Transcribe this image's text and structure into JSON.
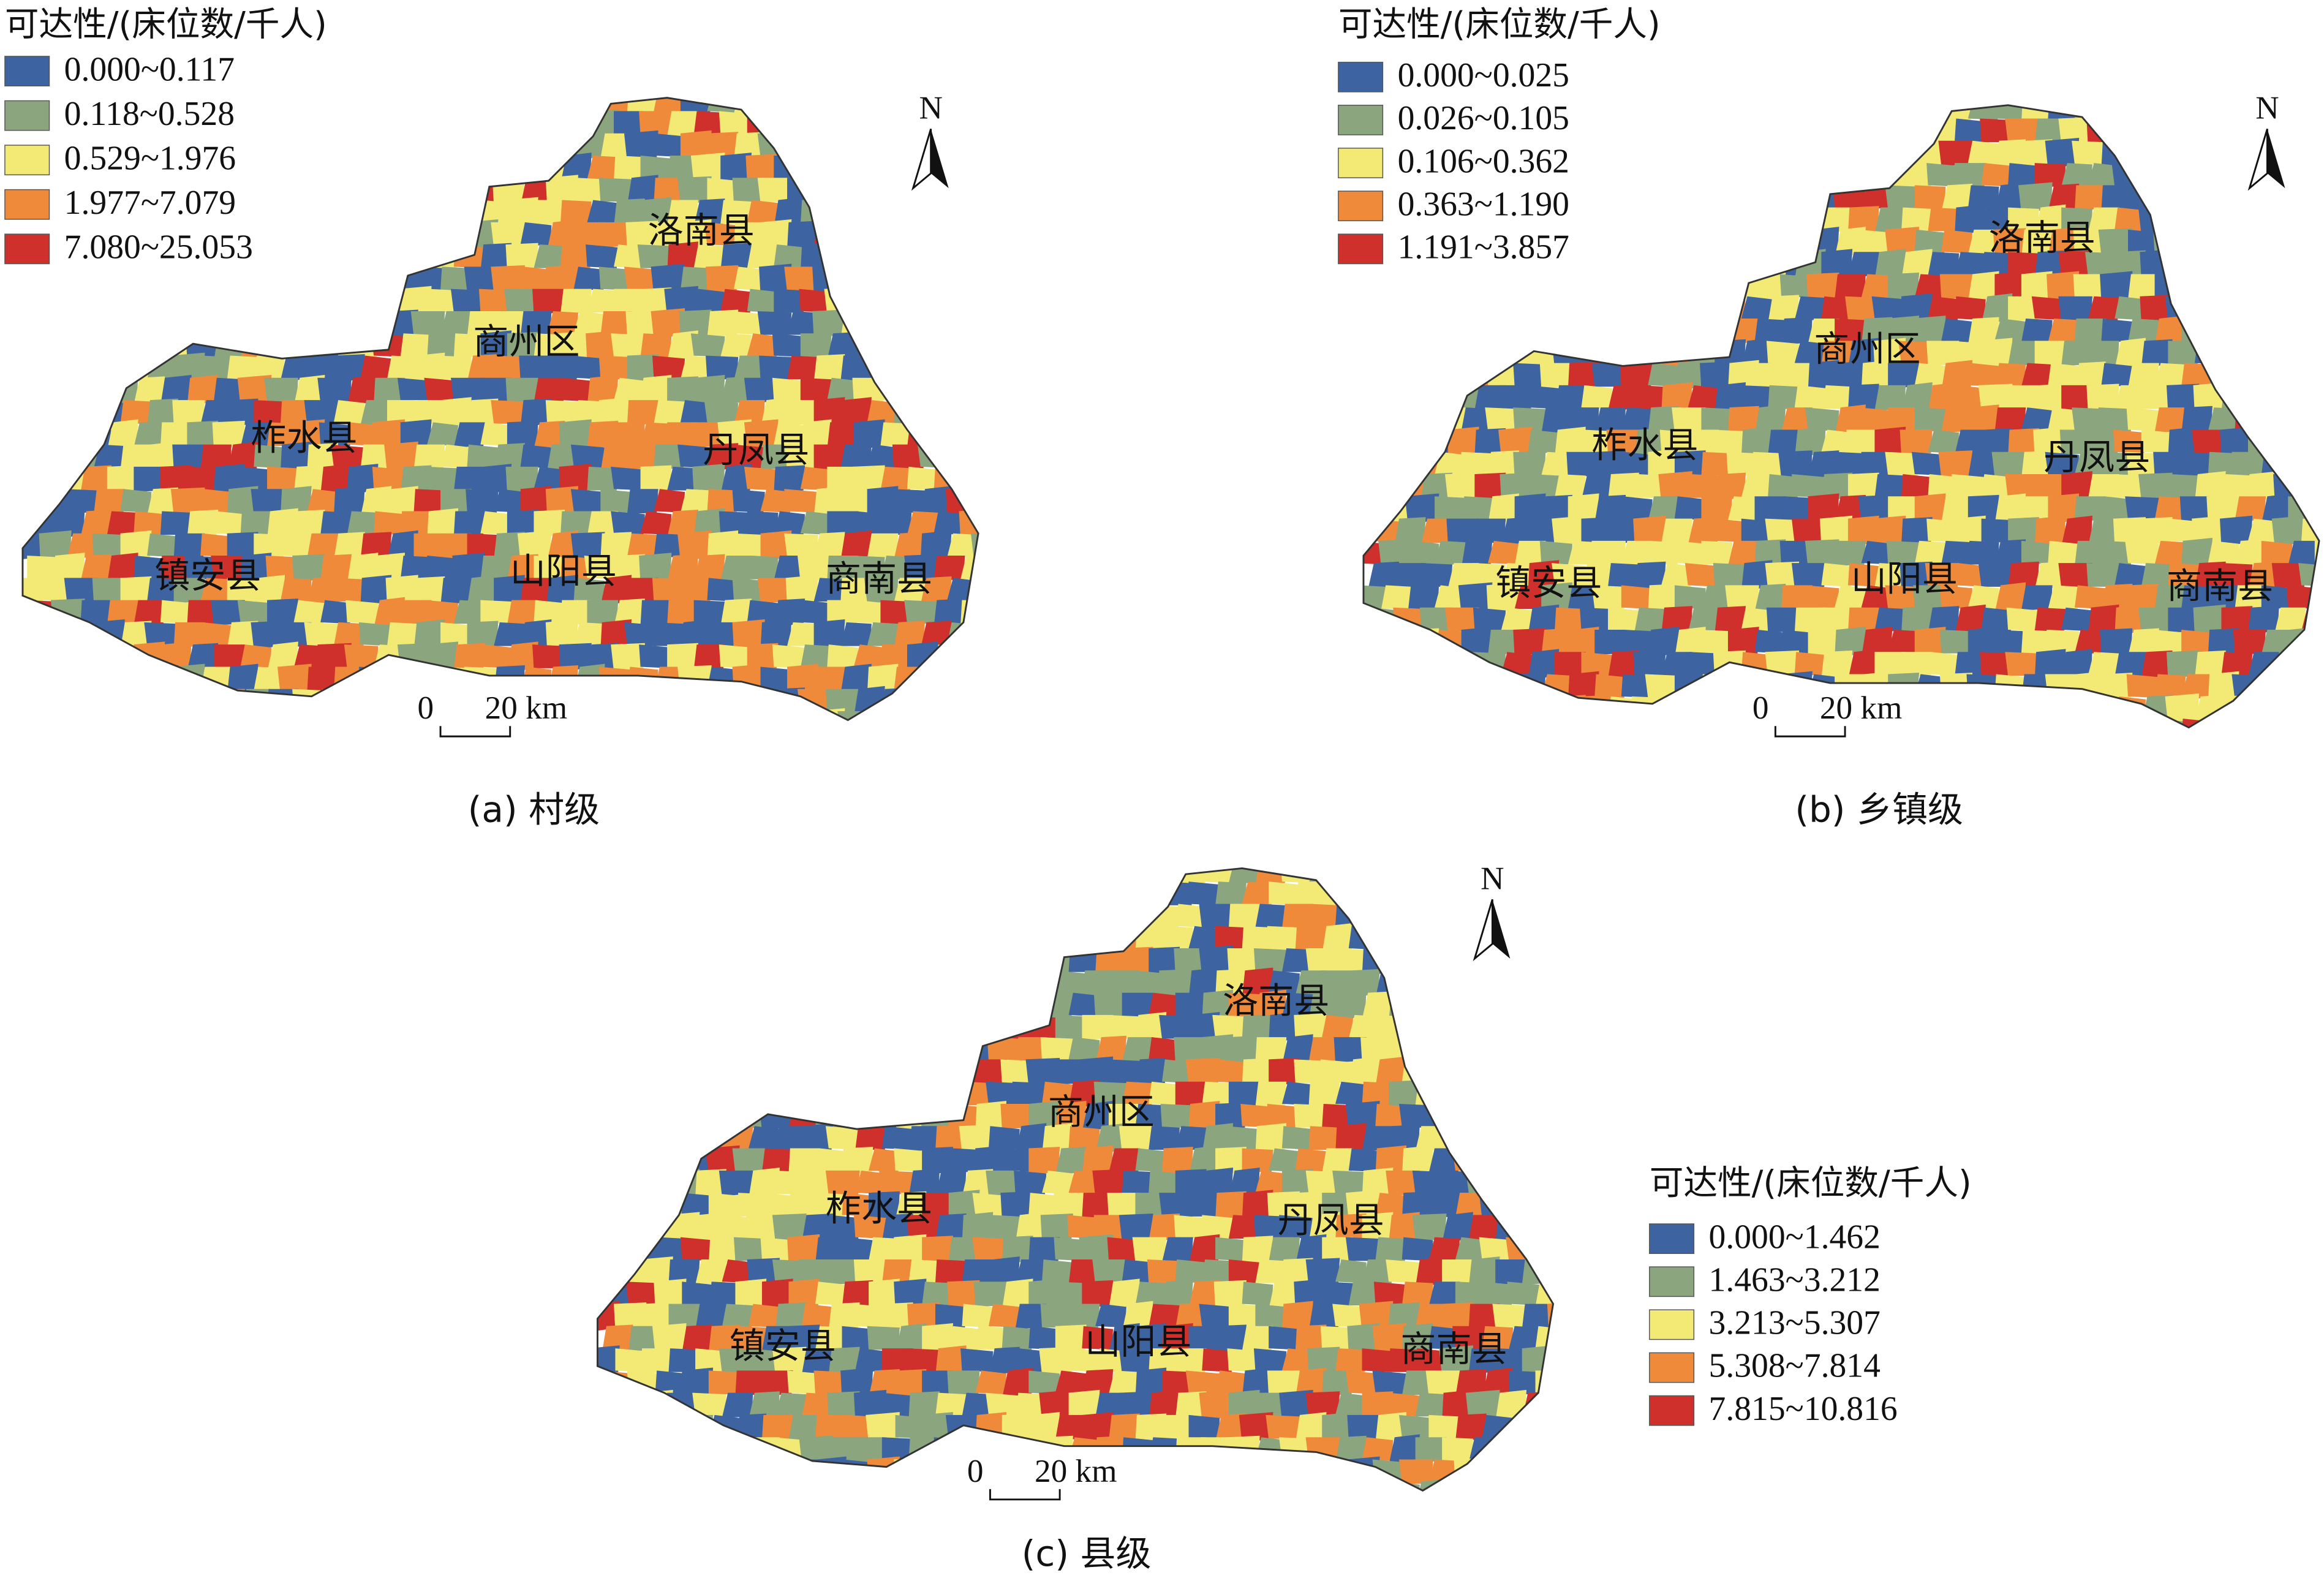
{
  "panels": [
    {
      "legend": {
        "title": "可达性/(床位数/千人)",
        "items": [
          {
            "label": "0.000~0.117",
            "color": "#3d64a1"
          },
          {
            "label": "0.118~0.528",
            "color": "#8ba57f"
          },
          {
            "label": "0.529~1.976",
            "color": "#f2ea74"
          },
          {
            "label": "1.977~7.079",
            "color": "#f08a3b"
          },
          {
            "label": "7.080~25.053",
            "color": "#d0302b"
          }
        ]
      },
      "districts": [
        "洛南县",
        "商州区",
        "柞水县",
        "丹凤县",
        "山阳县",
        "镇安县",
        "商南县"
      ],
      "scale_bar": {
        "start": "0",
        "end": "20 km"
      },
      "north": "N",
      "caption": "(a) 村级"
    },
    {
      "legend": {
        "title": "可达性/(床位数/千人)",
        "items": [
          {
            "label": "0.000~0.025",
            "color": "#3d64a1"
          },
          {
            "label": "0.026~0.105",
            "color": "#8ba57f"
          },
          {
            "label": "0.106~0.362",
            "color": "#f2ea74"
          },
          {
            "label": "0.363~1.190",
            "color": "#f08a3b"
          },
          {
            "label": "1.191~3.857",
            "color": "#d0302b"
          }
        ]
      },
      "districts": [
        "洛南县",
        "商州区",
        "柞水县",
        "丹凤县",
        "山阳县",
        "镇安县",
        "商南县"
      ],
      "scale_bar": {
        "start": "0",
        "end": "20 km"
      },
      "north": "N",
      "caption": "(b) 乡镇级"
    },
    {
      "legend": {
        "title": "可达性/(床位数/千人)",
        "items": [
          {
            "label": "0.000~1.462",
            "color": "#3d64a1"
          },
          {
            "label": "1.463~3.212",
            "color": "#8ba57f"
          },
          {
            "label": "3.213~5.307",
            "color": "#f2ea74"
          },
          {
            "label": "5.308~7.814",
            "color": "#f08a3b"
          },
          {
            "label": "7.815~10.816",
            "color": "#d0302b"
          }
        ]
      },
      "districts": [
        "洛南县",
        "商州区",
        "柞水县",
        "丹凤县",
        "山阳县",
        "镇安县",
        "商南县"
      ],
      "scale_bar": {
        "start": "0",
        "end": "20 km"
      },
      "north": "N",
      "caption": "(c) 县级"
    }
  ]
}
